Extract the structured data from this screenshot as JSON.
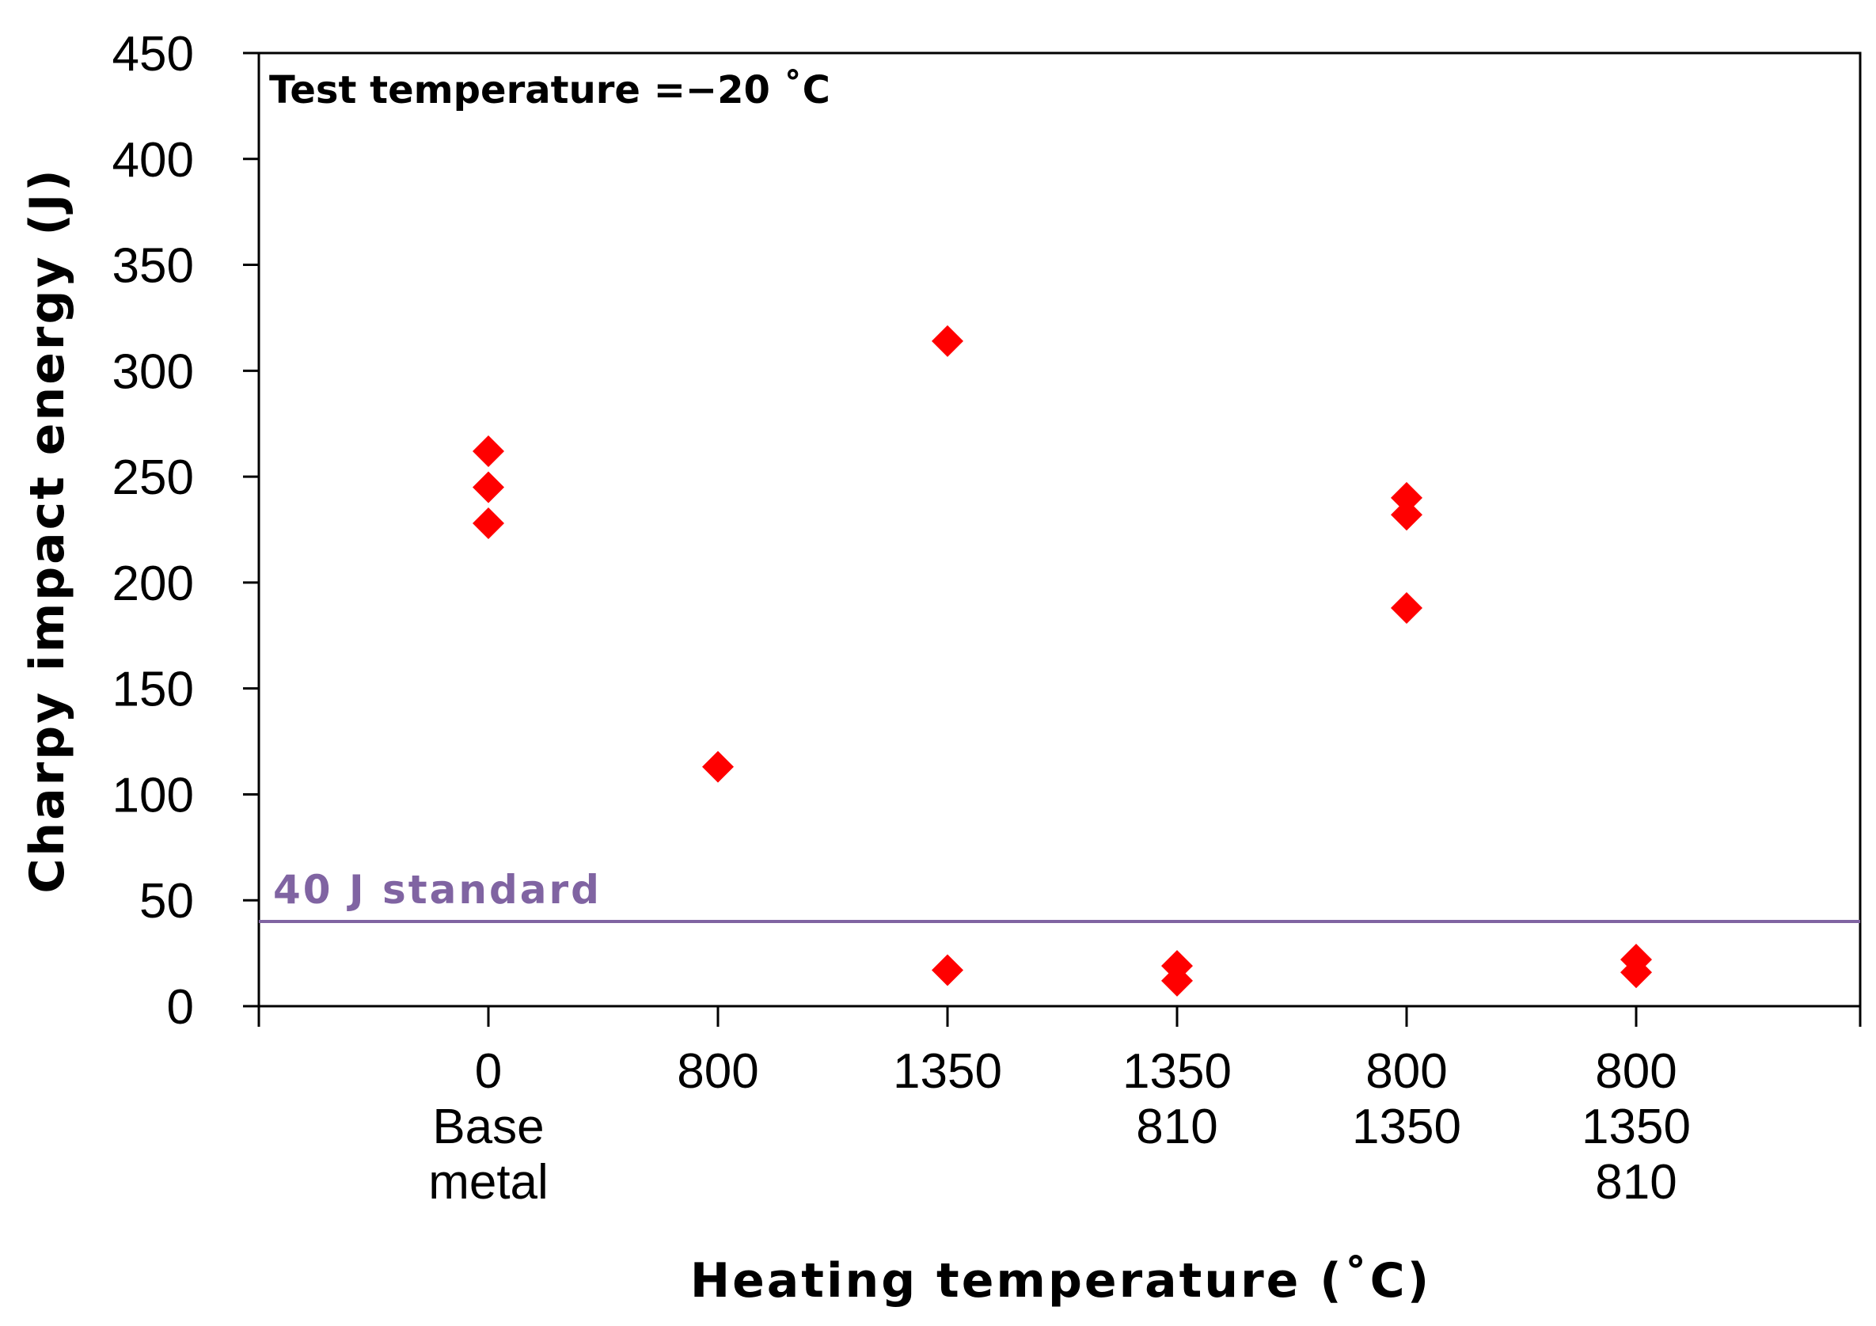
{
  "chart_data": {
    "type": "scatter",
    "title": "",
    "xlabel": "Heating temperature (˚C)",
    "ylabel": "Charpy impact energy (J)",
    "ylim": [
      0,
      450
    ],
    "yticks": [
      0,
      50,
      100,
      150,
      200,
      250,
      300,
      350,
      400,
      450
    ],
    "grid": false,
    "categories": [
      [
        "0",
        "Base",
        "metal"
      ],
      [
        "800"
      ],
      [
        "1350"
      ],
      [
        "1350",
        "810"
      ],
      [
        "800",
        "1350"
      ],
      [
        "800",
        "1350",
        "810"
      ]
    ],
    "series": [
      {
        "name": "Charpy impact energy",
        "marker": "diamond",
        "color": "#ff0000",
        "points": [
          {
            "category": 0,
            "value": 262
          },
          {
            "category": 0,
            "value": 245
          },
          {
            "category": 0,
            "value": 228
          },
          {
            "category": 1,
            "value": 113
          },
          {
            "category": 2,
            "value": 314
          },
          {
            "category": 2,
            "value": 17
          },
          {
            "category": 3,
            "value": 19
          },
          {
            "category": 3,
            "value": 12
          },
          {
            "category": 4,
            "value": 240
          },
          {
            "category": 4,
            "value": 232
          },
          {
            "category": 4,
            "value": 188
          },
          {
            "category": 5,
            "value": 22
          },
          {
            "category": 5,
            "value": 16
          }
        ]
      }
    ],
    "reference_line": {
      "value": 40,
      "label": "40 J standard",
      "color": "#8064a2"
    },
    "annotations": [
      {
        "text": "Test temperature =−20 ˚C",
        "placement": "top-left"
      }
    ]
  }
}
